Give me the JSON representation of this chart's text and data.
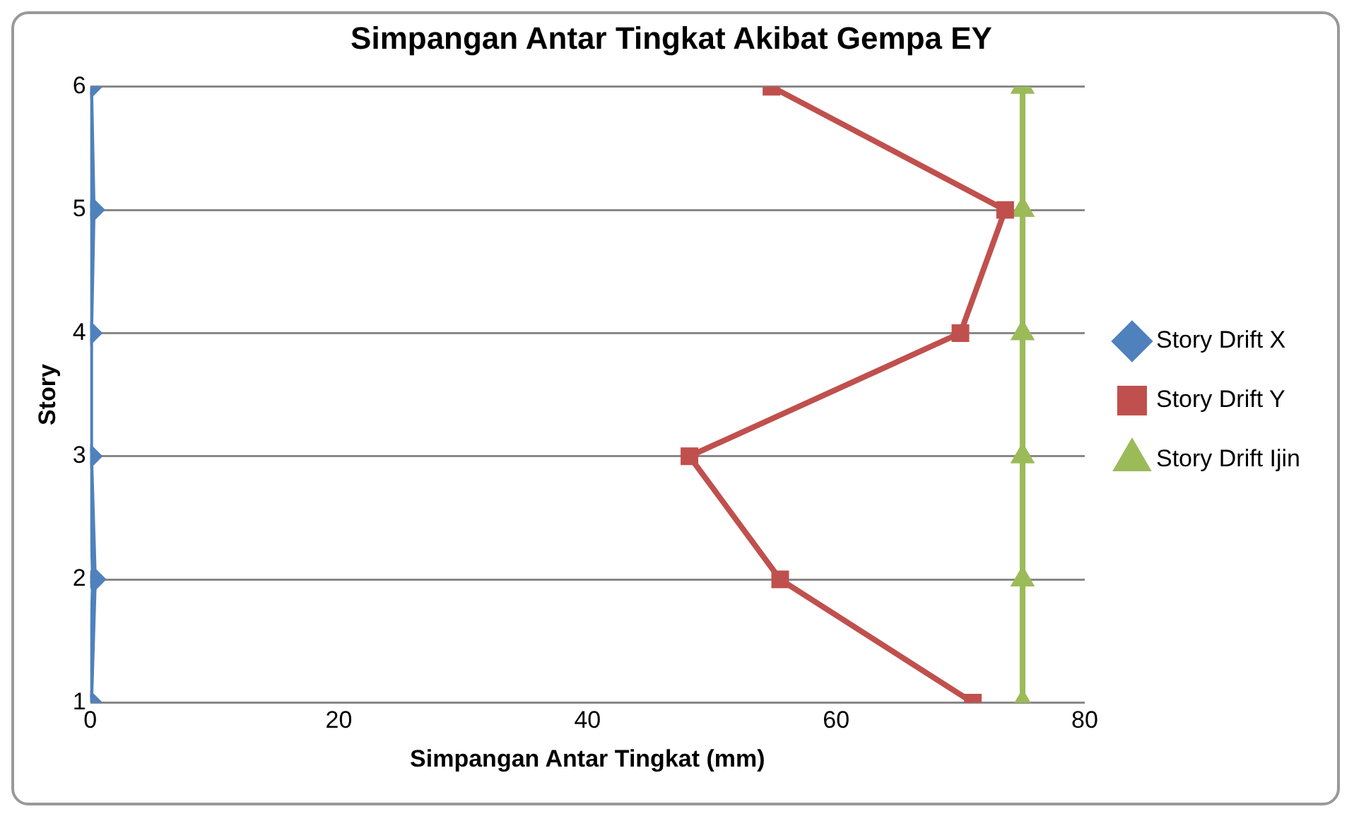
{
  "chart_data": {
    "type": "line",
    "title": "Simpangan Antar Tingkat Akibat Gempa EY",
    "xlabel": "Simpangan Antar Tingkat (mm)",
    "ylabel": "Story",
    "x": [
      1,
      2,
      3,
      4,
      5,
      6
    ],
    "series": [
      {
        "name": "Story Drift X",
        "color": "#4f81bd",
        "marker": "diamond",
        "values": [
          0,
          0.3,
          0,
          0,
          0.2,
          0
        ]
      },
      {
        "name": "Story Drift Y",
        "color": "#c0504d",
        "marker": "square",
        "values": [
          71,
          55.5,
          48.2,
          70,
          73.6,
          54.8
        ]
      },
      {
        "name": "Story Drift Ijin",
        "color": "#9bbb59",
        "marker": "triangle",
        "values": [
          75,
          75,
          75,
          75,
          75,
          75
        ]
      }
    ],
    "orientation": "horizontal",
    "xlim": [
      0,
      80
    ],
    "xticks": [
      0,
      20,
      40,
      60,
      80
    ],
    "ylim": [
      1,
      6
    ],
    "yticks": [
      1,
      2,
      3,
      4,
      5,
      6
    ],
    "grid": "y",
    "legend": "right"
  }
}
